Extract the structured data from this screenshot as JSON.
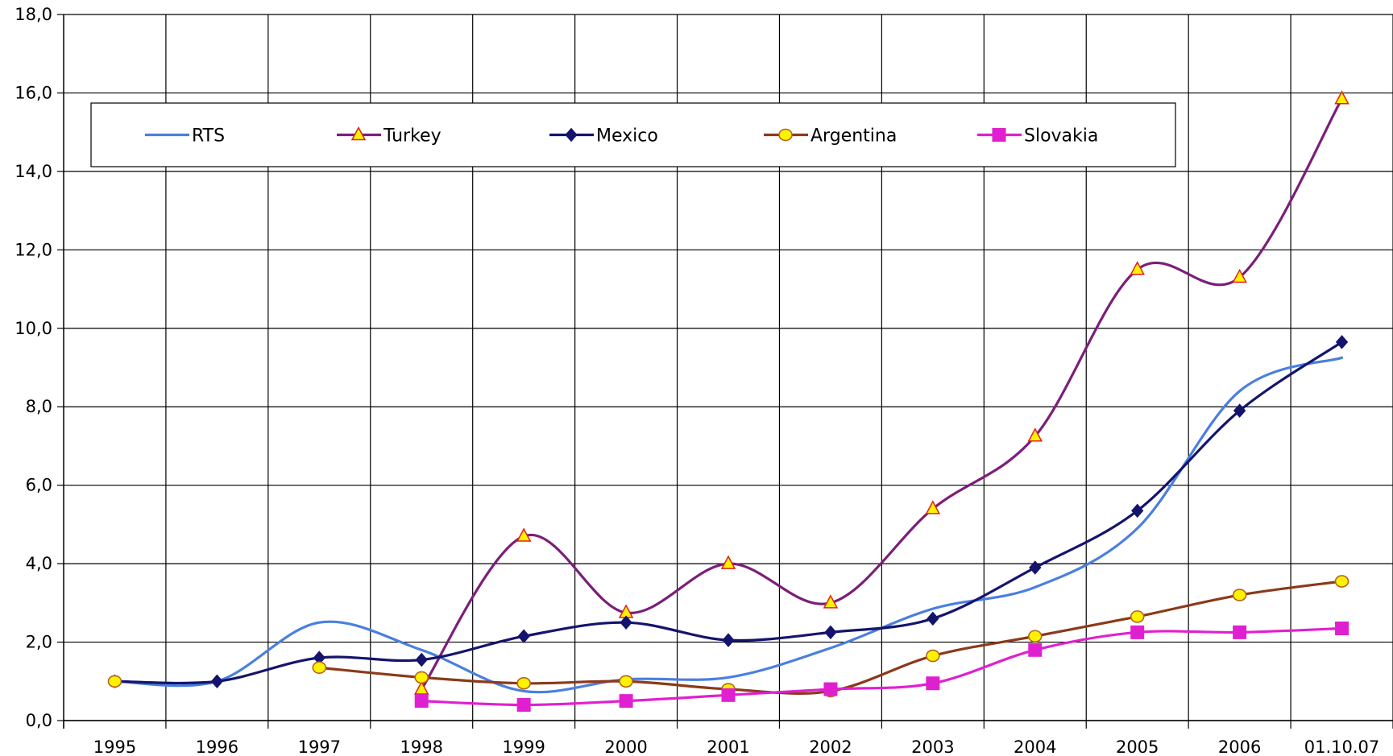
{
  "chart_data": {
    "type": "line",
    "categories": [
      "1995",
      "1996",
      "1997",
      "1998",
      "1999",
      "2000",
      "2001",
      "2002",
      "2003",
      "2004",
      "2005",
      "2006",
      "01.10.07"
    ],
    "ylim": [
      0,
      18
    ],
    "y_ticks": [
      "0,0",
      "2,0",
      "4,0",
      "6,0",
      "8,0",
      "10,0",
      "12,0",
      "14,0",
      "16,0",
      "18,0"
    ],
    "grid": true,
    "legend_position": "top",
    "series": [
      {
        "name": "RTS",
        "color": "#4A7FE0",
        "marker": "none",
        "values": [
          1.0,
          1.0,
          2.5,
          1.8,
          0.75,
          1.05,
          1.1,
          1.85,
          2.85,
          3.4,
          4.9,
          8.4,
          9.25
        ]
      },
      {
        "name": "Turkey",
        "color": "#7B1E7A",
        "marker": "triangle",
        "values": [
          null,
          null,
          null,
          0.8,
          4.7,
          2.75,
          4.0,
          3.0,
          5.4,
          7.25,
          11.5,
          11.3,
          15.85
        ]
      },
      {
        "name": "Mexico",
        "color": "#14146E",
        "marker": "diamond",
        "values": [
          1.0,
          1.0,
          1.6,
          1.55,
          2.15,
          2.5,
          2.05,
          2.25,
          2.6,
          3.9,
          5.35,
          7.9,
          9.65
        ]
      },
      {
        "name": "Argentina",
        "color": "#8B3A1A",
        "marker": "circle",
        "values": [
          1.0,
          null,
          1.35,
          1.1,
          0.95,
          1.0,
          0.8,
          0.75,
          1.65,
          2.15,
          2.65,
          3.2,
          3.55
        ]
      },
      {
        "name": "Slovakia",
        "color": "#E020D0",
        "marker": "square",
        "values": [
          null,
          null,
          null,
          0.5,
          0.4,
          0.5,
          0.65,
          0.8,
          0.95,
          1.8,
          2.25,
          2.25,
          2.35
        ]
      }
    ]
  }
}
